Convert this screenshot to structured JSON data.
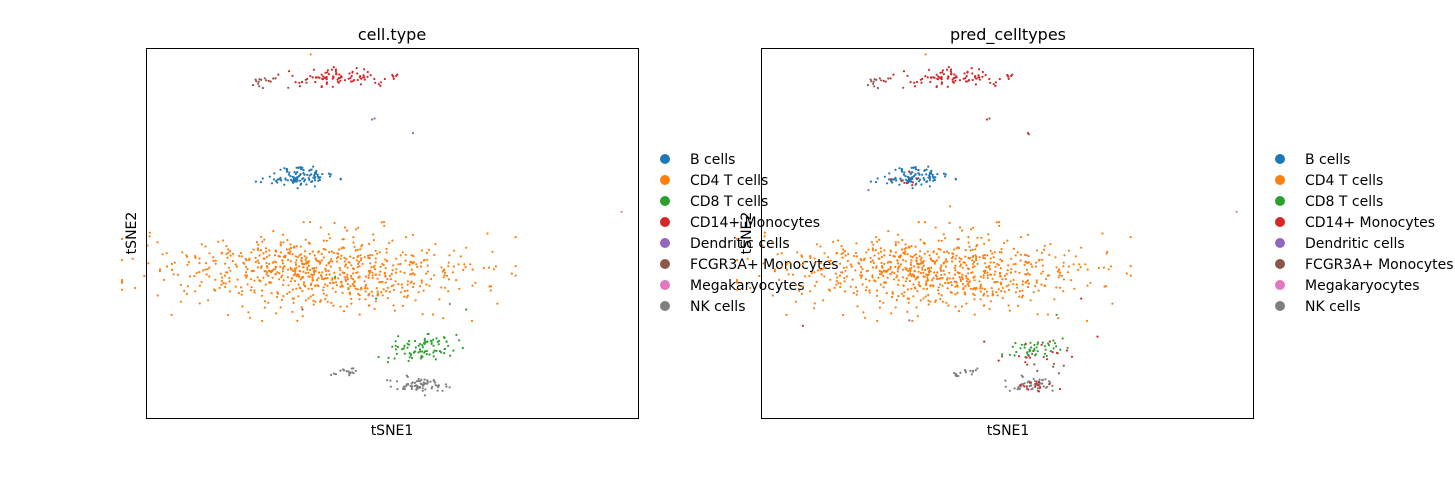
{
  "colors": {
    "B cells": "#1f77b4",
    "CD4 T cells": "#ff7f0e",
    "CD8 T cells": "#2ca02c",
    "CD14+ Monocytes": "#d62728",
    "Dendritic cells": "#9467bd",
    "FCGR3A+ Monocytes": "#8c564b",
    "Megakaryocytes": "#e377c2",
    "NK cells": "#7f7f7f"
  },
  "chart_data": [
    {
      "type": "scatter",
      "title": "cell.type",
      "xlabel": "tSNE1",
      "ylabel": "tSNE2",
      "xticks": "none",
      "yticks": "none",
      "grid": false,
      "legend_position": "right, outside",
      "legend": [
        "B cells",
        "CD4 T cells",
        "CD8 T cells",
        "CD14+ Monocytes",
        "Dendritic cells",
        "FCGR3A+ Monocytes",
        "Megakaryocytes",
        "NK cells"
      ],
      "clusters": [
        {
          "name": "CD14+ Monocytes",
          "center": [
            -4.0,
            37.5
          ],
          "spread": [
            7.0,
            1.8
          ],
          "count": 95
        },
        {
          "name": "FCGR3A+ Monocytes",
          "center": [
            -13.0,
            37.0
          ],
          "spread": [
            2.5,
            1.2
          ],
          "count": 14
        },
        {
          "name": "B cells",
          "center": [
            -8.5,
            19.5
          ],
          "spread": [
            4.0,
            1.7
          ],
          "count": 110
        },
        {
          "name": "CD4 T cells",
          "center": [
            -6.0,
            2.0
          ],
          "spread": [
            18.5,
            7.0
          ],
          "count": 760
        },
        {
          "name": "CD8 T cells",
          "center": [
            6.0,
            -12.0
          ],
          "spread": [
            4.5,
            2.8
          ],
          "count": 85
        },
        {
          "name": "NK cells",
          "center": [
            6.5,
            -19.0
          ],
          "spread": [
            3.2,
            1.4
          ],
          "count": 70
        },
        {
          "name": "NK cells",
          "center": [
            -2.5,
            -16.5
          ],
          "spread": [
            2.0,
            0.8
          ],
          "count": 18
        }
      ],
      "points": [
        {
          "name": "Dendritic cells",
          "x": 0.5,
          "y": 30.0
        },
        {
          "name": "Dendritic cells",
          "x": 0.8,
          "y": 30.2
        },
        {
          "name": "Dendritic cells",
          "x": 5.5,
          "y": 27.5
        },
        {
          "name": "Megakaryocytes",
          "x": 31.0,
          "y": 13.0
        },
        {
          "name": "CD4 T cells",
          "x": -24.0,
          "y": -6.0
        },
        {
          "name": "CD4 T cells",
          "x": 15.0,
          "y": -1.5
        },
        {
          "name": "CD4 T cells",
          "x": -7.0,
          "y": 42.0
        },
        {
          "name": "CD8 T cells",
          "x": -4.0,
          "y": 1.0
        },
        {
          "name": "CD8 T cells",
          "x": 1.0,
          "y": -3.0
        },
        {
          "name": "CD8 T cells",
          "x": 12.0,
          "y": -5.0
        },
        {
          "name": "NK cells",
          "x": 10.0,
          "y": -4.0
        },
        {
          "name": "FCGR3A+ Monocytes",
          "x": -8.0,
          "y": -5.0
        }
      ],
      "xlim": [
        -27,
        33
      ],
      "ylim": [
        -25,
        43
      ]
    },
    {
      "type": "scatter",
      "title": "pred_celltypes",
      "xlabel": "tSNE1",
      "ylabel": "tSNE2",
      "xticks": "none",
      "yticks": "none",
      "grid": false,
      "legend_position": "right, outside",
      "legend": [
        "B cells",
        "CD4 T cells",
        "CD8 T cells",
        "CD14+ Monocytes",
        "Dendritic cells",
        "FCGR3A+ Monocytes",
        "Megakaryocytes",
        "NK cells"
      ],
      "clusters": [
        {
          "name": "CD14+ Monocytes",
          "center": [
            -4.0,
            37.5
          ],
          "spread": [
            7.0,
            1.8
          ],
          "count": 95
        },
        {
          "name": "FCGR3A+ Monocytes",
          "center": [
            -13.0,
            37.0
          ],
          "spread": [
            2.5,
            1.2
          ],
          "count": 14
        },
        {
          "name": "B cells",
          "center": [
            -8.5,
            19.5
          ],
          "spread": [
            4.0,
            1.7
          ],
          "count": 105
        },
        {
          "name": "CD14+ Monocytes",
          "center": [
            -9.5,
            19.0
          ],
          "spread": [
            4.0,
            1.5
          ],
          "count": 8
        },
        {
          "name": "CD4 T cells",
          "center": [
            -6.0,
            2.0
          ],
          "spread": [
            18.5,
            7.0
          ],
          "count": 800
        },
        {
          "name": "CD8 T cells",
          "center": [
            6.0,
            -12.0
          ],
          "spread": [
            3.5,
            2.0
          ],
          "count": 45
        },
        {
          "name": "CD14+ Monocytes",
          "center": [
            6.0,
            -13.0
          ],
          "spread": [
            4.5,
            3.0
          ],
          "count": 14
        },
        {
          "name": "FCGR3A+ Monocytes",
          "center": [
            6.0,
            -15.0
          ],
          "spread": [
            4.0,
            2.5
          ],
          "count": 12
        },
        {
          "name": "NK cells",
          "center": [
            6.5,
            -19.0
          ],
          "spread": [
            3.2,
            1.4
          ],
          "count": 55
        },
        {
          "name": "CD14+ Monocytes",
          "center": [
            6.5,
            -19.0
          ],
          "spread": [
            3.0,
            1.4
          ],
          "count": 14
        },
        {
          "name": "NK cells",
          "center": [
            -2.5,
            -16.5
          ],
          "spread": [
            2.0,
            0.8
          ],
          "count": 16
        }
      ],
      "points": [
        {
          "name": "CD14+ Monocytes",
          "x": 0.5,
          "y": 30.0
        },
        {
          "name": "FCGR3A+ Monocytes",
          "x": 0.8,
          "y": 30.2
        },
        {
          "name": "CD14+ Monocytes",
          "x": 5.5,
          "y": 27.5
        },
        {
          "name": "FCGR3A+ Monocytes",
          "x": 5.6,
          "y": 27.3
        },
        {
          "name": "Megakaryocytes",
          "x": 31.0,
          "y": 13.0
        },
        {
          "name": "CD4 T cells",
          "x": -24.0,
          "y": -6.0
        },
        {
          "name": "CD14+ Monocytes",
          "x": -22.0,
          "y": -8.0
        },
        {
          "name": "CD14+ Monocytes",
          "x": 12.0,
          "y": -3.0
        },
        {
          "name": "CD14+ Monocytes",
          "x": 14.0,
          "y": -10.0
        },
        {
          "name": "Dendritic cells",
          "x": -9.0,
          "y": -7.0
        },
        {
          "name": "Dendritic cells",
          "x": -14.0,
          "y": 17.0
        },
        {
          "name": "CD4 T cells",
          "x": -7.0,
          "y": 42.0
        },
        {
          "name": "CD8 T cells",
          "x": 9.0,
          "y": -6.0
        },
        {
          "name": "CD4 T cells",
          "x": -4.0,
          "y": 14.0
        }
      ],
      "xlim": [
        -27,
        33
      ],
      "ylim": [
        -25,
        43
      ]
    }
  ]
}
